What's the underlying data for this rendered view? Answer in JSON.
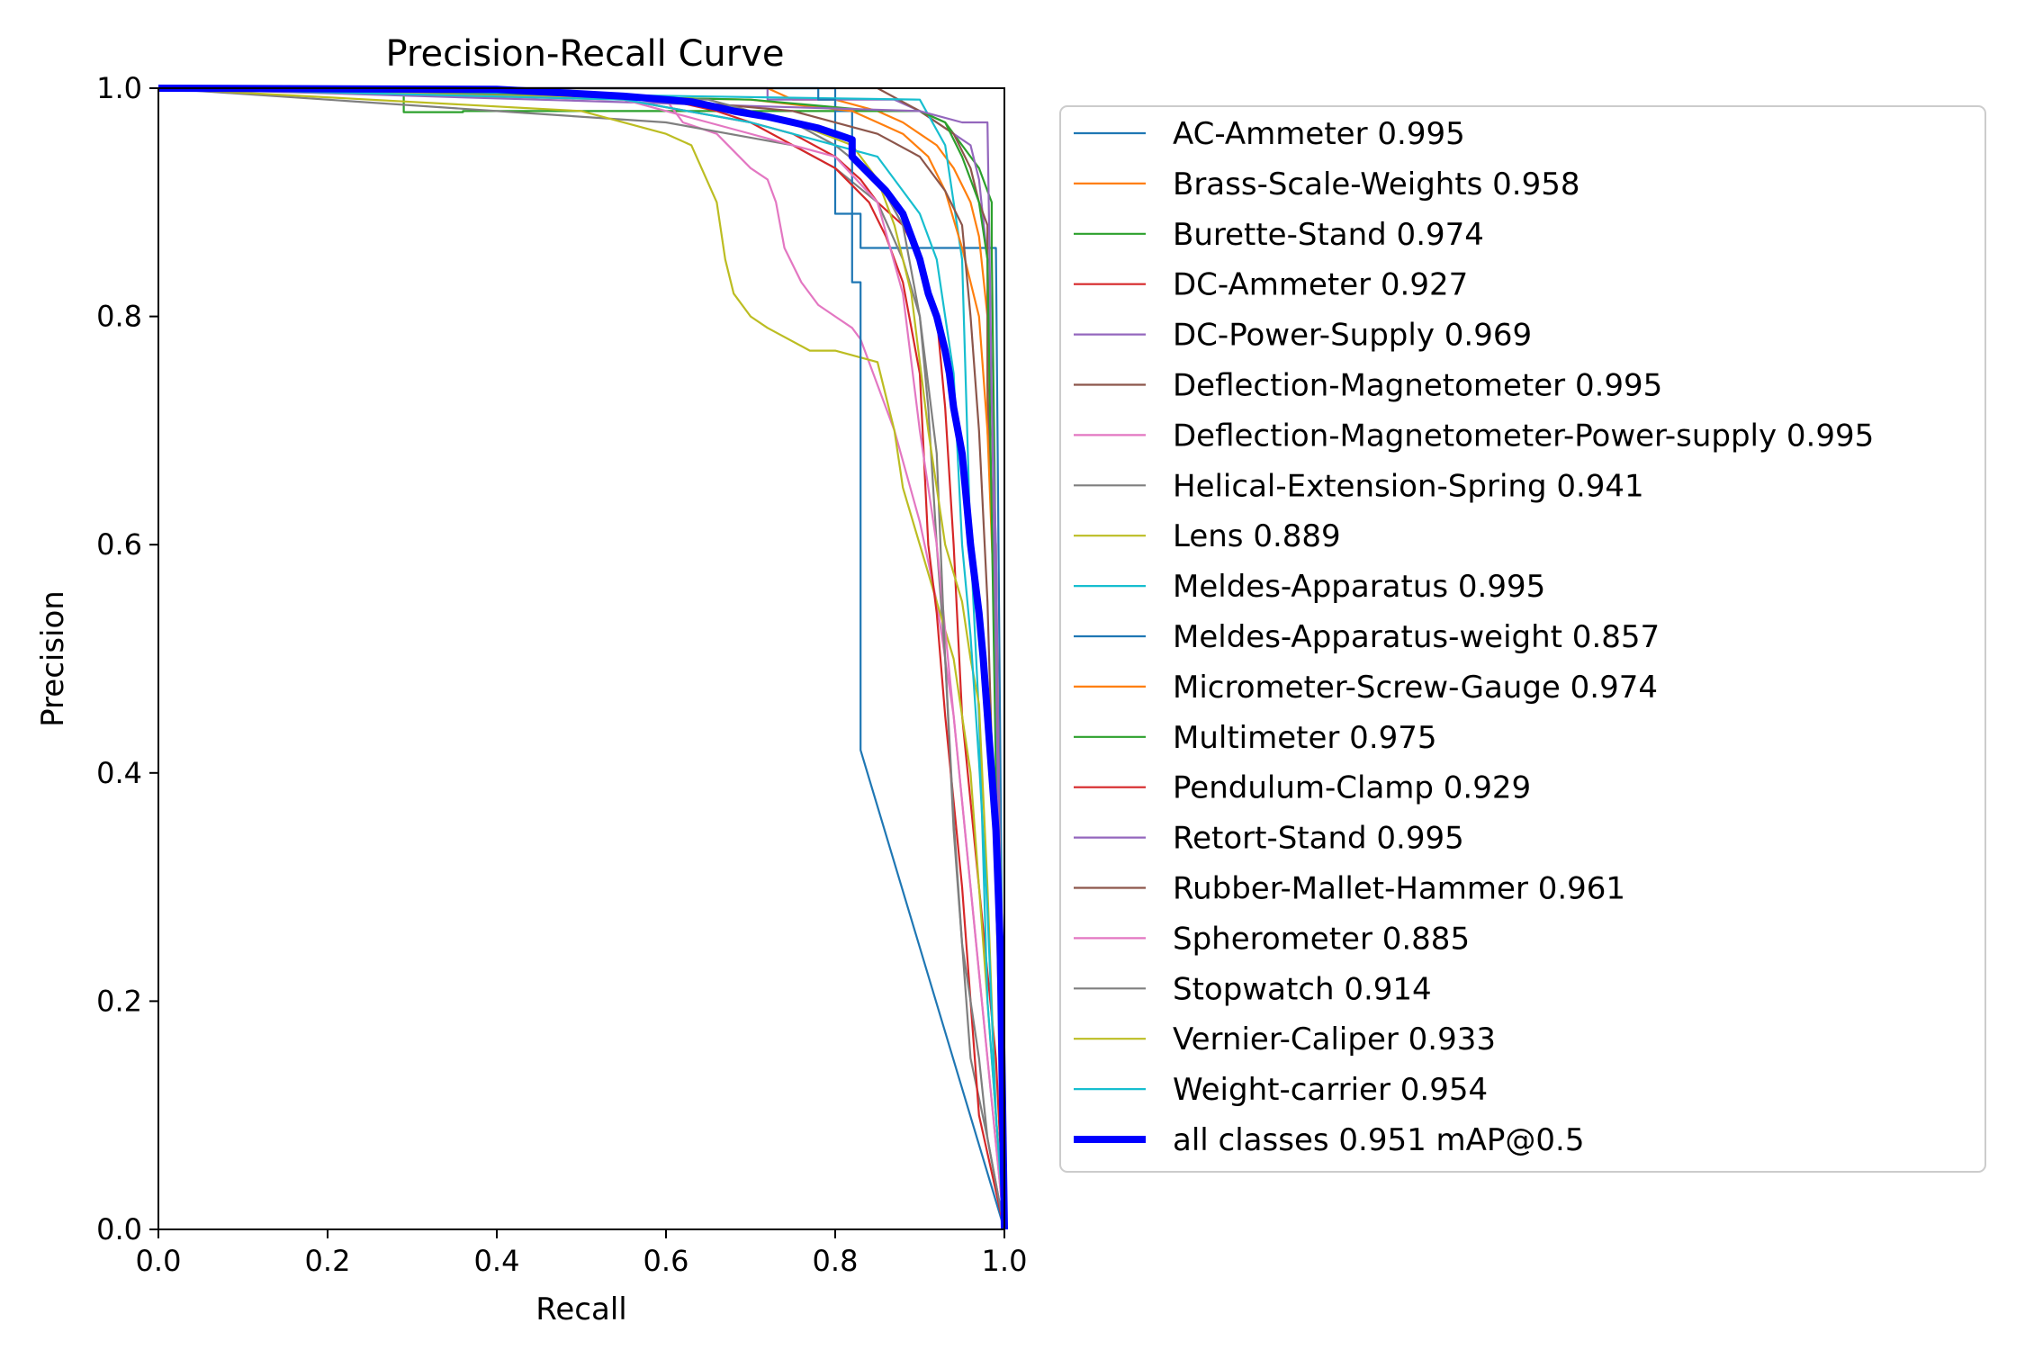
{
  "chart_data": {
    "type": "line",
    "title": "Precision-Recall Curve",
    "xlabel": "Recall",
    "ylabel": "Precision",
    "xlim": [
      0,
      1
    ],
    "ylim": [
      0,
      1
    ],
    "x_ticks": [
      "0.0",
      "0.2",
      "0.4",
      "0.6",
      "0.8",
      "1.0"
    ],
    "y_ticks": [
      "0.0",
      "0.2",
      "0.4",
      "0.6",
      "0.8",
      "1.0"
    ],
    "grid": false,
    "legend_position": "outside-right",
    "series": [
      {
        "name": "AC-Ammeter 0.995",
        "color": "#1f77b4",
        "x": [
          0,
          0.8,
          0.8,
          0.83,
          0.83,
          0.84,
          0.99,
          1.0
        ],
        "y": [
          1,
          1,
          0.89,
          0.89,
          0.86,
          0.86,
          0.86,
          0
        ]
      },
      {
        "name": "Brass-Scale-Weights 0.958",
        "color": "#ff7f0e",
        "x": [
          0,
          0.72,
          0.75,
          0.8,
          0.85,
          0.88,
          0.9,
          0.92,
          0.94,
          0.96,
          0.97,
          0.98,
          0.98,
          0.99,
          1.0
        ],
        "y": [
          1,
          1,
          0.99,
          0.99,
          0.98,
          0.97,
          0.96,
          0.95,
          0.93,
          0.9,
          0.87,
          0.8,
          0.7,
          0.6,
          0
        ]
      },
      {
        "name": "Burette-Stand 0.974",
        "color": "#2ca02c",
        "x": [
          0,
          0.29,
          0.29,
          0.36,
          0.36,
          0.9,
          0.93,
          0.95,
          0.97,
          0.985,
          0.985,
          1.0
        ],
        "y": [
          1,
          1,
          0.979,
          0.979,
          0.98,
          0.98,
          0.97,
          0.95,
          0.93,
          0.9,
          0.86,
          0
        ]
      },
      {
        "name": "DC-Ammeter 0.927",
        "color": "#d62728",
        "x": [
          0,
          0.6,
          0.66,
          0.7,
          0.75,
          0.8,
          0.83,
          0.85,
          0.88,
          0.9,
          0.92,
          0.93,
          0.94,
          0.95,
          0.97,
          0.99,
          1.0
        ],
        "y": [
          1,
          0.99,
          0.98,
          0.97,
          0.96,
          0.94,
          0.92,
          0.9,
          0.88,
          0.85,
          0.8,
          0.72,
          0.6,
          0.45,
          0.3,
          0.15,
          0
        ]
      },
      {
        "name": "DC-Power-Supply 0.969",
        "color": "#9467bd",
        "x": [
          0,
          0.72,
          0.72,
          0.87,
          0.9,
          0.92,
          0.94,
          0.96,
          0.97,
          0.98,
          0.99,
          1.0
        ],
        "y": [
          1,
          1,
          0.99,
          0.99,
          0.98,
          0.97,
          0.96,
          0.95,
          0.92,
          0.85,
          0.6,
          0
        ]
      },
      {
        "name": "Deflection-Magnetometer 0.995",
        "color": "#8c564b",
        "x": [
          0,
          0.85,
          0.9,
          0.94,
          0.96,
          0.97,
          0.98,
          0.98,
          0.99,
          1.0
        ],
        "y": [
          1,
          1,
          0.98,
          0.96,
          0.93,
          0.9,
          0.88,
          0.74,
          0.5,
          0
        ]
      },
      {
        "name": "Deflection-Magnetometer-Power-supply 0.995",
        "color": "#e377c2",
        "x": [
          0,
          0.6,
          0.62,
          0.66,
          0.7,
          0.72,
          0.73,
          0.74,
          0.76,
          0.78,
          0.8,
          0.82,
          0.83,
          0.85,
          0.87,
          0.9,
          0.92,
          0.94,
          0.96,
          0.98,
          1.0
        ],
        "y": [
          1,
          0.99,
          0.97,
          0.96,
          0.93,
          0.92,
          0.9,
          0.86,
          0.83,
          0.81,
          0.8,
          0.79,
          0.78,
          0.74,
          0.7,
          0.62,
          0.55,
          0.45,
          0.3,
          0.15,
          0
        ]
      },
      {
        "name": "Helical-Extension-Spring 0.941",
        "color": "#7f7f7f",
        "x": [
          0,
          0.4,
          0.6,
          0.75,
          0.8,
          0.85,
          0.88,
          0.9,
          0.91,
          0.92,
          0.93,
          0.94,
          0.95,
          0.96,
          0.98,
          1.0
        ],
        "y": [
          1,
          0.98,
          0.97,
          0.95,
          0.93,
          0.9,
          0.85,
          0.8,
          0.72,
          0.6,
          0.5,
          0.35,
          0.25,
          0.15,
          0.08,
          0
        ]
      },
      {
        "name": "Lens 0.889",
        "color": "#bcbd22",
        "x": [
          0,
          0.5,
          0.6,
          0.63,
          0.66,
          0.67,
          0.68,
          0.7,
          0.72,
          0.77,
          0.8,
          0.85,
          0.87,
          0.88,
          0.9,
          0.92,
          0.94,
          0.96,
          0.98,
          1.0
        ],
        "y": [
          1,
          0.98,
          0.96,
          0.95,
          0.9,
          0.85,
          0.82,
          0.8,
          0.79,
          0.77,
          0.77,
          0.76,
          0.7,
          0.65,
          0.6,
          0.55,
          0.5,
          0.4,
          0.2,
          0
        ]
      },
      {
        "name": "Meldes-Apparatus 0.995",
        "color": "#17becf",
        "x": [
          0,
          0.9,
          0.93,
          0.95,
          0.96,
          0.97,
          0.98,
          1.0
        ],
        "y": [
          1,
          0.99,
          0.95,
          0.85,
          0.6,
          0.45,
          0.2,
          0
        ]
      },
      {
        "name": "Meldes-Apparatus-weight 0.857",
        "color": "#1f77b4",
        "x": [
          0,
          0.5,
          0.75,
          0.78,
          0.78,
          0.8,
          0.8,
          0.82,
          0.82,
          0.83,
          0.83,
          1.0
        ],
        "y": [
          1,
          1,
          1,
          1,
          0.99,
          0.99,
          0.98,
          0.98,
          0.83,
          0.83,
          0.42,
          0
        ]
      },
      {
        "name": "Micrometer-Screw-Gauge 0.974",
        "color": "#ff7f0e",
        "x": [
          0,
          0.7,
          0.82,
          0.85,
          0.88,
          0.91,
          0.93,
          0.95,
          0.97,
          0.98,
          0.99,
          1.0
        ],
        "y": [
          1,
          0.99,
          0.98,
          0.97,
          0.96,
          0.94,
          0.91,
          0.86,
          0.8,
          0.7,
          0.51,
          0
        ]
      },
      {
        "name": "Multimeter 0.975",
        "color": "#2ca02c",
        "x": [
          0,
          0.7,
          0.85,
          0.9,
          0.93,
          0.95,
          0.96,
          0.97,
          0.98,
          0.99,
          1.0
        ],
        "y": [
          1,
          0.99,
          0.98,
          0.98,
          0.97,
          0.94,
          0.92,
          0.9,
          0.85,
          0.4,
          0
        ]
      },
      {
        "name": "Pendulum-Clamp 0.929",
        "color": "#d62728",
        "x": [
          0,
          0.55,
          0.7,
          0.8,
          0.84,
          0.86,
          0.88,
          0.9,
          0.91,
          0.92,
          0.93,
          0.95,
          0.96,
          0.97,
          1.0
        ],
        "y": [
          1,
          0.99,
          0.97,
          0.93,
          0.9,
          0.87,
          0.83,
          0.75,
          0.6,
          0.54,
          0.45,
          0.3,
          0.2,
          0.1,
          0
        ]
      },
      {
        "name": "Retort-Stand 0.995",
        "color": "#9467bd",
        "x": [
          0,
          0.9,
          0.95,
          0.98,
          0.99,
          1.0
        ],
        "y": [
          1,
          0.98,
          0.97,
          0.97,
          0.5,
          0
        ]
      },
      {
        "name": "Rubber-Mallet-Hammer 0.961",
        "color": "#8c564b",
        "x": [
          0,
          0.6,
          0.75,
          0.85,
          0.9,
          0.93,
          0.95,
          0.96,
          0.97,
          0.98,
          0.99,
          1.0
        ],
        "y": [
          1,
          0.99,
          0.98,
          0.96,
          0.94,
          0.91,
          0.88,
          0.8,
          0.7,
          0.55,
          0.3,
          0
        ]
      },
      {
        "name": "Spherometer 0.885",
        "color": "#e377c2",
        "x": [
          0,
          0.55,
          0.65,
          0.8,
          0.85,
          0.88,
          0.9,
          0.92,
          0.94,
          0.96,
          0.98,
          1.0
        ],
        "y": [
          1,
          0.99,
          0.97,
          0.94,
          0.9,
          0.82,
          0.7,
          0.6,
          0.45,
          0.3,
          0.15,
          0
        ]
      },
      {
        "name": "Stopwatch 0.914",
        "color": "#7f7f7f",
        "x": [
          0,
          0.65,
          0.75,
          0.8,
          0.85,
          0.88,
          0.9,
          0.92,
          0.93,
          0.94,
          0.95,
          0.97,
          0.98,
          1.0
        ],
        "y": [
          1,
          0.99,
          0.97,
          0.95,
          0.92,
          0.88,
          0.8,
          0.68,
          0.5,
          0.36,
          0.25,
          0.15,
          0.08,
          0
        ]
      },
      {
        "name": "Vernier-Caliper 0.933",
        "color": "#bcbd22",
        "x": [
          0,
          0.6,
          0.75,
          0.82,
          0.85,
          0.87,
          0.89,
          0.91,
          0.93,
          0.95,
          0.96,
          0.97,
          0.98,
          0.99,
          1.0
        ],
        "y": [
          1,
          0.99,
          0.97,
          0.95,
          0.92,
          0.88,
          0.82,
          0.7,
          0.6,
          0.55,
          0.5,
          0.46,
          0.3,
          0.1,
          0
        ]
      },
      {
        "name": "Weight-carrier 0.954",
        "color": "#17becf",
        "x": [
          0,
          0.55,
          0.7,
          0.85,
          0.88,
          0.9,
          0.92,
          0.94,
          0.95,
          0.96,
          0.97,
          0.98,
          0.99,
          1.0
        ],
        "y": [
          1,
          0.99,
          0.97,
          0.94,
          0.91,
          0.89,
          0.85,
          0.75,
          0.6,
          0.52,
          0.41,
          0.28,
          0.1,
          0
        ]
      },
      {
        "name": "all classes 0.951 mAP@0.5",
        "color": "#0000ff",
        "thick": true,
        "x": [
          0,
          0.4,
          0.5,
          0.55,
          0.6,
          0.63,
          0.65,
          0.68,
          0.72,
          0.75,
          0.78,
          0.8,
          0.82,
          0.82,
          0.84,
          0.86,
          0.87,
          0.88,
          0.89,
          0.9,
          0.91,
          0.92,
          0.93,
          0.935,
          0.94,
          0.95,
          0.955,
          0.96,
          0.965,
          0.97,
          0.975,
          0.98,
          0.985,
          0.99,
          0.995,
          1.0
        ],
        "y": [
          1,
          0.999,
          0.995,
          0.993,
          0.99,
          0.988,
          0.985,
          0.98,
          0.975,
          0.97,
          0.965,
          0.96,
          0.955,
          0.94,
          0.925,
          0.91,
          0.9,
          0.89,
          0.87,
          0.85,
          0.82,
          0.8,
          0.77,
          0.75,
          0.72,
          0.68,
          0.64,
          0.6,
          0.57,
          0.54,
          0.5,
          0.45,
          0.4,
          0.35,
          0.25,
          0.0
        ]
      }
    ]
  }
}
